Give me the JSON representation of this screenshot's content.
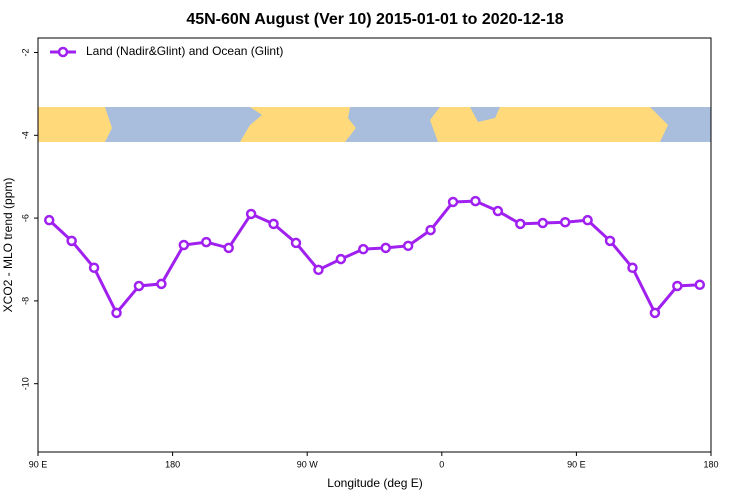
{
  "chart_data": {
    "type": "line",
    "title": "45N-60N August (Ver 10)   2015-01-01 to 2020-12-18",
    "xlabel": "Longitude (deg E)",
    "ylabel": "XCO2 - MLO trend (ppm)",
    "x": [
      97.5,
      112.5,
      127.5,
      142.5,
      157.5,
      172.5,
      187.5,
      202.5,
      217.5,
      232.5,
      247.5,
      262.5,
      277.5,
      292.5,
      307.5,
      322.5,
      337.5,
      352.5,
      367.5,
      382.5,
      397.5,
      412.5,
      427.5,
      442.5,
      457.5,
      472.5,
      487.5,
      502.5,
      517.5,
      532.5
    ],
    "series": [
      {
        "name": "Land (Nadir&Glint) and Ocean (Glint)",
        "color": "#a020f0",
        "values": [
          -6.05,
          -6.55,
          -7.2,
          -8.29,
          -7.64,
          -7.59,
          -6.65,
          -6.58,
          -6.72,
          -5.9,
          -6.14,
          -6.6,
          -7.25,
          -6.99,
          -6.75,
          -6.72,
          -6.67,
          -6.29,
          -5.61,
          -5.59,
          -5.83,
          -6.14,
          -6.12,
          -6.1,
          -6.05,
          -6.55,
          -7.2,
          -8.29,
          -7.64,
          -7.61
        ]
      }
    ],
    "xlim": [
      90,
      540
    ],
    "xticks": [
      {
        "value": 90,
        "label": "90 E"
      },
      180,
      {
        "value": 270,
        "label": "90 W"
      },
      {
        "value": 360,
        "label": "0"
      },
      {
        "value": 450,
        "label": "90 E"
      },
      {
        "value": 540,
        "label": "180"
      }
    ],
    "ylim": [
      -11.65,
      -1.65
    ],
    "yticks": [
      -2,
      -4,
      -6,
      -8,
      -10
    ],
    "legend": "top-left"
  }
}
